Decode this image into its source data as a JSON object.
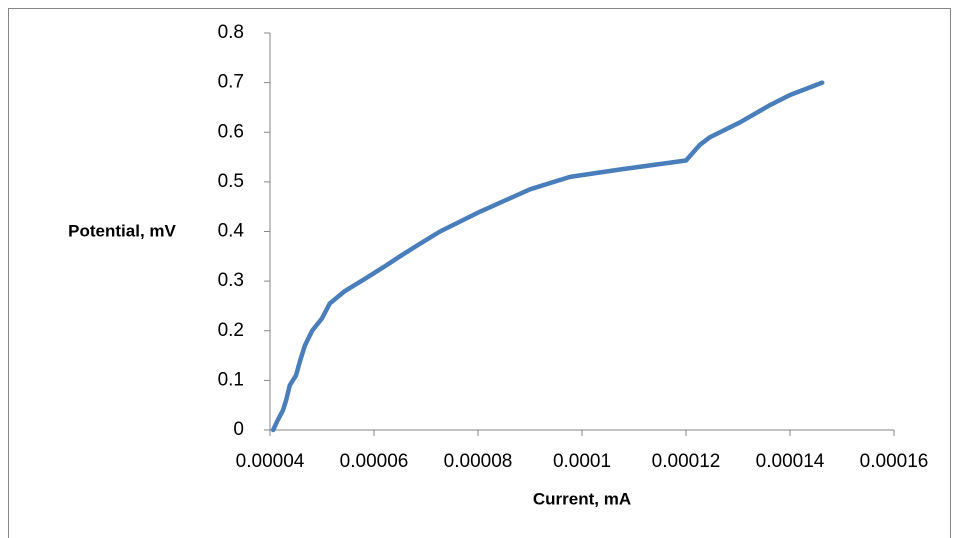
{
  "chart_data": {
    "type": "line",
    "x": [
      4.06e-05,
      4.15e-05,
      4.25e-05,
      4.31e-05,
      4.38e-05,
      4.5e-05,
      4.58e-05,
      4.67e-05,
      4.81e-05,
      5e-05,
      5.15e-05,
      5.44e-05,
      5.83e-05,
      6.21e-05,
      6.5e-05,
      6.88e-05,
      7.27e-05,
      8.04e-05,
      9e-05,
      9.77e-05,
      0.0001073,
      0.00012,
      0.0001227,
      0.0001246,
      0.0001304,
      0.0001362,
      0.00014,
      0.0001462
    ],
    "values": [
      0,
      0.02,
      0.04,
      0.06,
      0.09,
      0.11,
      0.14,
      0.17,
      0.2,
      0.225,
      0.255,
      0.28,
      0.305,
      0.33,
      0.35,
      0.375,
      0.4,
      0.44,
      0.485,
      0.51,
      0.525,
      0.543,
      0.575,
      0.59,
      0.62,
      0.655,
      0.675,
      0.7
    ],
    "color": "#4a7ebb",
    "xlabel": "Current, mA",
    "ylabel": "Potential, mV",
    "xlim": [
      4e-05,
      0.00016
    ],
    "xticks": [
      4e-05,
      6e-05,
      8e-05,
      0.0001,
      0.00012,
      0.00014,
      0.00016
    ],
    "ylim": [
      0,
      0.8
    ],
    "yticks": [
      0,
      0.1,
      0.2,
      0.3,
      0.4,
      0.5,
      0.6,
      0.7,
      0.8
    ],
    "grid": false
  }
}
